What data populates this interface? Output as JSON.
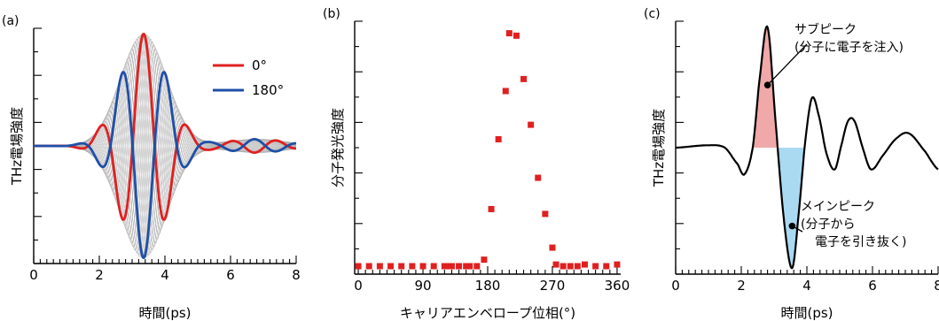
{
  "chart_data": [
    {
      "panel_label": "(a)",
      "type": "line",
      "xlabel": "時間(ps)",
      "ylabel": "THz電場強度",
      "xlim": [
        0,
        8
      ],
      "ylim": [
        -1.05,
        1.05
      ],
      "x_ticks": [
        "0",
        "2",
        "4",
        "6",
        "8"
      ],
      "y_ticks_labeled": false,
      "grid": false,
      "legend_position": "top-right",
      "background_traces": {
        "count": 24,
        "color": "#aaaaaa",
        "description_phase_range_deg": [
          0,
          360
        ]
      },
      "pulse": {
        "center_ps": 3.35,
        "sigma_ps": 1.0,
        "period_ps": 1.35,
        "amplitude": 1.0,
        "tail_amplitude": 0.06
      },
      "series": [
        {
          "name": "0°",
          "phase_deg": 0,
          "color": "#e02020"
        },
        {
          "name": "180°",
          "phase_deg": 180,
          "color": "#1f4fa8"
        }
      ]
    },
    {
      "panel_label": "(b)",
      "type": "scatter",
      "xlabel": "キャリアエンベロープ位相(°)",
      "ylabel": "分子発光強度",
      "xlim": [
        -5,
        365
      ],
      "ylim": [
        0,
        1.05
      ],
      "x_ticks": [
        "0",
        "90",
        "180",
        "270",
        "360"
      ],
      "y_ticks_labeled": false,
      "grid": false,
      "marker_color": "#e02020",
      "x": [
        0,
        15,
        30,
        45,
        60,
        75,
        90,
        105,
        120,
        125,
        130,
        140,
        150,
        155,
        165,
        175,
        185,
        195,
        205,
        210,
        220,
        230,
        240,
        250,
        260,
        270,
        275,
        285,
        295,
        305,
        315,
        330,
        345,
        360
      ],
      "y": [
        0.02,
        0.01,
        0.01,
        0.015,
        0.01,
        0.01,
        0.005,
        0.005,
        0.01,
        0.005,
        0.0,
        0.01,
        0.01,
        0.015,
        0.02,
        0.06,
        0.27,
        0.56,
        0.76,
        1.0,
        0.99,
        0.81,
        0.62,
        0.4,
        0.25,
        0.11,
        0.04,
        0.02,
        0.03,
        0.02,
        0.04,
        0.01,
        0.005,
        0.04
      ]
    },
    {
      "panel_label": "(c)",
      "type": "line",
      "xlabel": "時間(ps)",
      "ylabel": "THz電場強度",
      "xlim": [
        0,
        8
      ],
      "ylim": [
        -1.05,
        1.05
      ],
      "x_ticks": [
        "0",
        "2",
        "4",
        "6",
        "8"
      ],
      "y_ticks_labeled": false,
      "grid": false,
      "line_color": "#000000",
      "waveform": {
        "x": [
          0.0,
          1.0,
          1.5,
          1.9,
          2.1,
          2.35,
          2.55,
          2.8,
          3.05,
          3.3,
          3.55,
          3.75,
          3.95,
          4.15,
          4.35,
          4.6,
          4.85,
          5.05,
          5.25,
          5.45,
          5.7,
          5.95,
          6.3,
          6.7,
          7.1,
          7.6,
          8.0
        ],
        "y": [
          0.0,
          0.02,
          0.0,
          -0.14,
          -0.22,
          0.0,
          0.55,
          1.0,
          0.2,
          -0.6,
          -1.0,
          -0.55,
          0.05,
          0.41,
          0.28,
          -0.05,
          -0.18,
          0.02,
          0.22,
          0.22,
          0.0,
          -0.18,
          -0.07,
          0.07,
          0.12,
          -0.03,
          -0.18
        ]
      },
      "shaded_regions": [
        {
          "x_from": 2.35,
          "x_to": 3.15,
          "color": "#f0a8a8",
          "meaning": "positive lobe"
        },
        {
          "x_from": 3.15,
          "x_to": 3.95,
          "color": "#a9daf2",
          "meaning": "negative lobe"
        }
      ],
      "annotations": [
        {
          "lines": [
            "サブピーク",
            "(分子に電子を注入)"
          ],
          "target_x": 2.8,
          "target_y": 0.52
        },
        {
          "lines": [
            "メインピーク",
            "(分子から",
            "電子を引き抜く)"
          ],
          "target_x": 3.55,
          "target_y": -0.65
        }
      ]
    }
  ]
}
